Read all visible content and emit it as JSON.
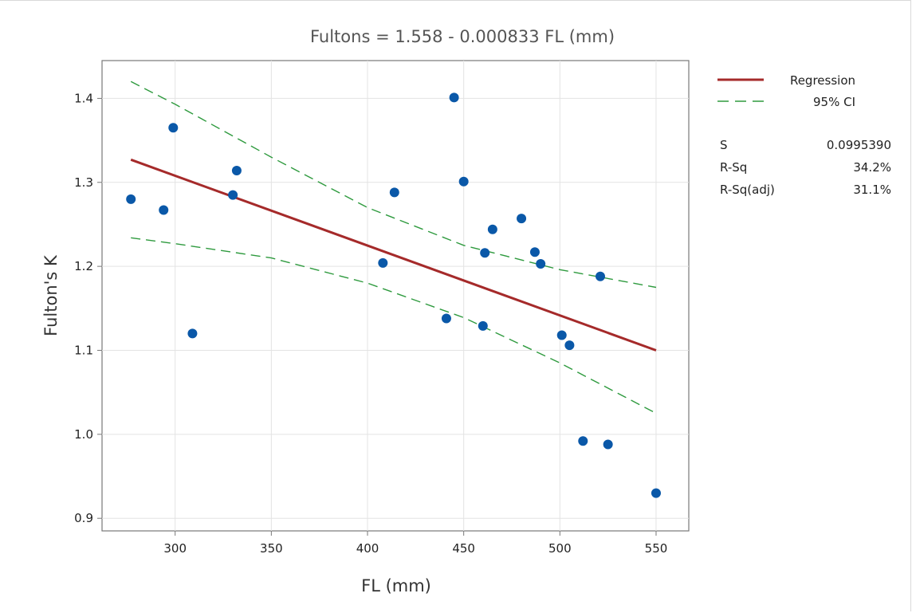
{
  "chart_data": {
    "type": "scatter",
    "title": "Fultons = 1.558 - 0.000833 FL (mm)",
    "xlabel": "FL (mm)",
    "ylabel": "Fulton's K",
    "xlim": [
      262,
      567
    ],
    "ylim": [
      0.885,
      1.445
    ],
    "xticks": [
      300,
      350,
      400,
      450,
      500,
      550
    ],
    "yticks": [
      0.9,
      1.0,
      1.1,
      1.2,
      1.3,
      1.4
    ],
    "ytick_labels": [
      "0.9",
      "1.0",
      "1.1",
      "1.2",
      "1.3",
      "1.4"
    ],
    "grid": true,
    "legend_position": "right",
    "points": [
      {
        "x": 277,
        "y": 1.28
      },
      {
        "x": 294,
        "y": 1.267
      },
      {
        "x": 299,
        "y": 1.365
      },
      {
        "x": 309,
        "y": 1.12
      },
      {
        "x": 330,
        "y": 1.285
      },
      {
        "x": 332,
        "y": 1.314
      },
      {
        "x": 408,
        "y": 1.204
      },
      {
        "x": 414,
        "y": 1.288
      },
      {
        "x": 441,
        "y": 1.138
      },
      {
        "x": 445,
        "y": 1.401
      },
      {
        "x": 450,
        "y": 1.301
      },
      {
        "x": 460,
        "y": 1.129
      },
      {
        "x": 461,
        "y": 1.216
      },
      {
        "x": 465,
        "y": 1.244
      },
      {
        "x": 480,
        "y": 1.257
      },
      {
        "x": 487,
        "y": 1.217
      },
      {
        "x": 490,
        "y": 1.203
      },
      {
        "x": 501,
        "y": 1.118
      },
      {
        "x": 505,
        "y": 1.106
      },
      {
        "x": 512,
        "y": 0.992
      },
      {
        "x": 521,
        "y": 1.188
      },
      {
        "x": 525,
        "y": 0.988
      },
      {
        "x": 550,
        "y": 0.93
      }
    ],
    "regression": {
      "x": [
        277,
        550
      ],
      "y": [
        1.327,
        1.1
      ]
    },
    "ci_upper": [
      {
        "x": 277,
        "y": 1.42
      },
      {
        "x": 300,
        "y": 1.393
      },
      {
        "x": 350,
        "y": 1.33
      },
      {
        "x": 400,
        "y": 1.27
      },
      {
        "x": 450,
        "y": 1.225
      },
      {
        "x": 500,
        "y": 1.196
      },
      {
        "x": 550,
        "y": 1.175
      }
    ],
    "ci_lower": [
      {
        "x": 277,
        "y": 1.234
      },
      {
        "x": 300,
        "y": 1.227
      },
      {
        "x": 350,
        "y": 1.21
      },
      {
        "x": 400,
        "y": 1.18
      },
      {
        "x": 450,
        "y": 1.139
      },
      {
        "x": 500,
        "y": 1.085
      },
      {
        "x": 550,
        "y": 1.025
      }
    ],
    "legend": [
      {
        "label": "Regression",
        "style": "solid",
        "color": "#a52a2a"
      },
      {
        "label": "95% CI",
        "style": "dashed",
        "color": "#2e9a3e"
      }
    ],
    "stats": [
      {
        "label": "S",
        "value": "0.0995390"
      },
      {
        "label": "R-Sq",
        "value": "34.2%"
      },
      {
        "label": "R-Sq(adj)",
        "value": "31.1%"
      }
    ],
    "colors": {
      "points": "#0a58a8",
      "regression": "#a52a2a",
      "ci": "#2e9a3e",
      "grid": "#e3e3e3",
      "axis": "#777777"
    }
  }
}
